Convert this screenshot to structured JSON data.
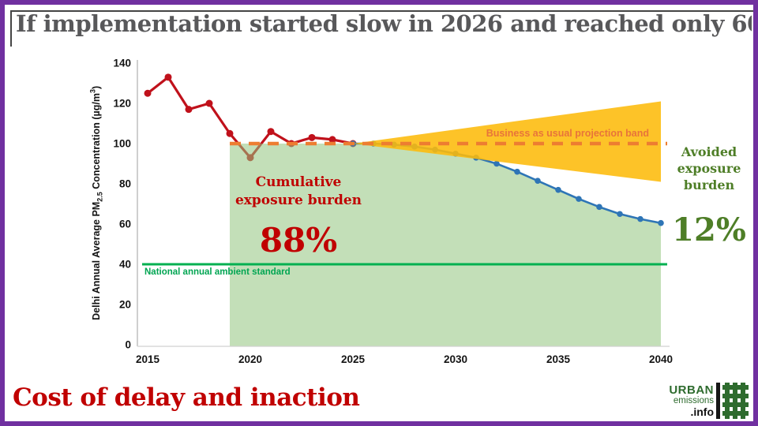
{
  "header": {
    "title": "If implementation started slow in 2026 and reached only 60"
  },
  "footer": {
    "caption": "Cost of delay and inaction",
    "logo": {
      "line1": "URBAN",
      "line2": "emissions",
      "line3": ".info",
      "icon": "hash-grid-icon"
    }
  },
  "chart_data": {
    "type": "line",
    "title": "If implementation started slow in 2026 and reached only 60",
    "ylabel_parts": {
      "p1": "Delhi Annual Average PM",
      "sub": "2.5",
      "p2": " Concentration (µg/m",
      "sup": "3",
      "p3": ")"
    },
    "xlim": [
      2015,
      2040
    ],
    "ylim": [
      0,
      140
    ],
    "x_ticks": [
      2015,
      2020,
      2025,
      2030,
      2035,
      2040
    ],
    "y_ticks": [
      0,
      20,
      40,
      60,
      80,
      100,
      120,
      140
    ],
    "grid": false,
    "legend": false,
    "series": [
      {
        "name": "historical-observed",
        "color": "#c0111b",
        "x": [
          2015,
          2016,
          2017,
          2018,
          2019,
          2020,
          2021,
          2022,
          2023,
          2024,
          2025
        ],
        "values": [
          125,
          133,
          117,
          120,
          105,
          93,
          106,
          100,
          103,
          102,
          100
        ]
      },
      {
        "name": "delayed-implementation-scenario",
        "color": "#2e75b6",
        "x": [
          2025,
          2026,
          2027,
          2028,
          2029,
          2030,
          2031,
          2032,
          2033,
          2034,
          2035,
          2036,
          2037,
          2038,
          2039,
          2040
        ],
        "values": [
          100,
          100,
          99.5,
          98.5,
          97,
          95,
          93,
          90,
          86,
          81.5,
          77,
          72.5,
          68.5,
          65,
          62.5,
          60.5
        ]
      }
    ],
    "bau_band": {
      "label": "Business as usual projection band",
      "fill": "#fdbb0a",
      "apex_x": 2025,
      "apex_value": 100,
      "end_x": 2040,
      "end_top": 121,
      "end_bottom": 81,
      "dashed_line_value": 100,
      "dashed_color": "#ed7d31",
      "label_color": "#e8743a"
    },
    "standard_line": {
      "label": "National annual ambient standard",
      "value": 40,
      "color": "#00b050"
    },
    "green_area": {
      "x_start": 2019,
      "x_end": 2040,
      "top_value": 100,
      "fill_rgba": "rgba(146,196,125,0.55)"
    },
    "annotations": {
      "cumulative": {
        "label": "Cumulative exposure burden",
        "value": "88%",
        "color": "#c00000"
      },
      "avoided": {
        "label": "Avoided exposure burden",
        "value": "12%",
        "color": "#4e7e27"
      }
    }
  }
}
